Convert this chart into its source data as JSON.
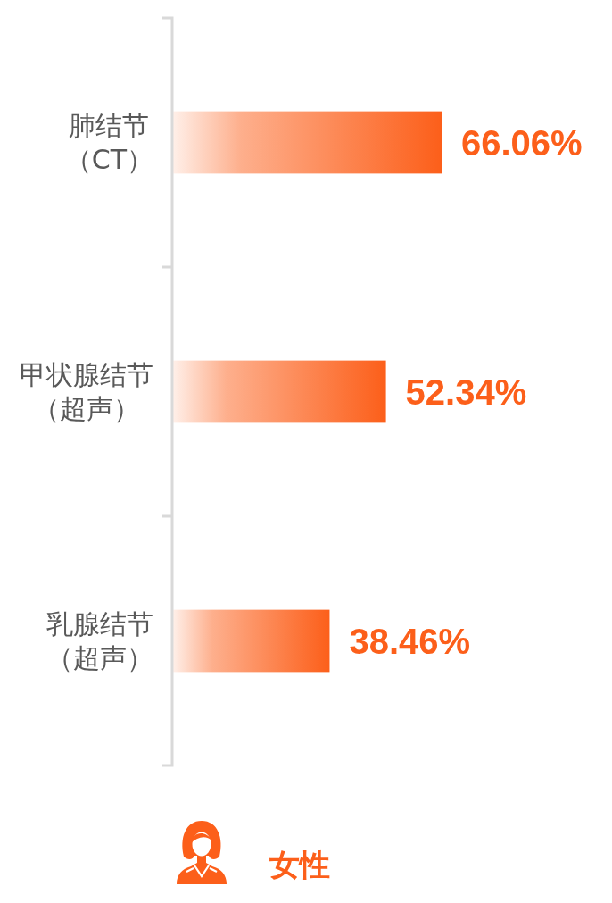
{
  "chart_data": {
    "type": "bar",
    "orientation": "horizontal",
    "categories": [
      "肺结节（CT）",
      "甲状腺结节（超声）",
      "乳腺结节（超声）"
    ],
    "series": [
      {
        "name": "女性",
        "color": "#fc5f1a",
        "values": [
          66.06,
          52.34,
          38.46
        ],
        "value_labels": [
          "66.06%",
          "52.34%",
          "38.46%"
        ]
      }
    ],
    "tick_labels": "y",
    "legend": "bottom"
  }
}
